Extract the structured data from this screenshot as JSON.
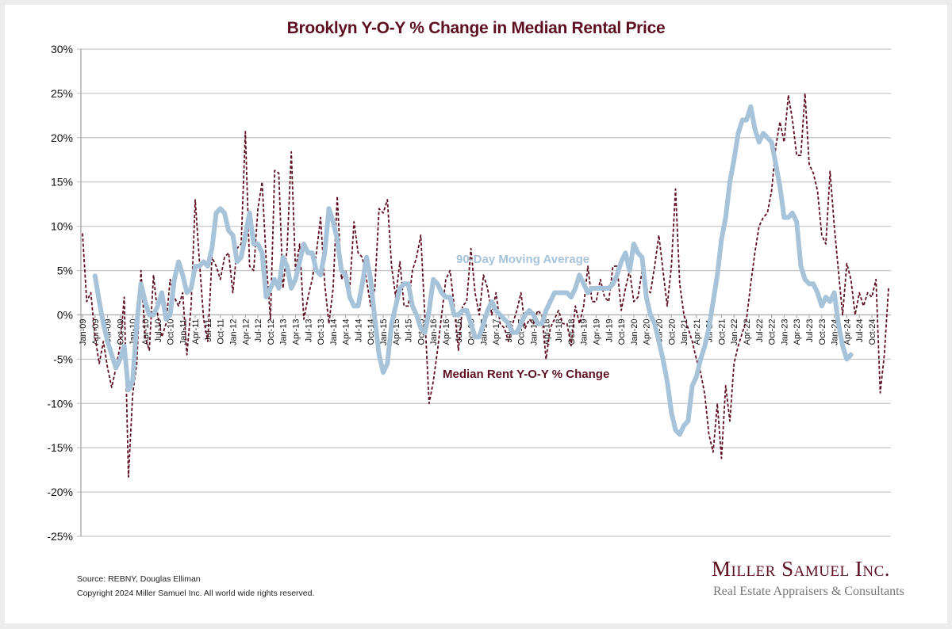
{
  "page": {
    "title": "Brooklyn Y-O-Y % Change in Median Rental Price",
    "source": "Source: REBNY, Douglas Elliman",
    "copyright": "Copyright 2024 Miller Samuel Inc.  All world wide rights reserved.",
    "logo": {
      "name": "Miller Samuel Inc.",
      "tagline": "Real Estate Appraisers & Consultants"
    },
    "colors": {
      "title": "#5e1020",
      "series_rent": "#5e1020",
      "series_avg": "#a7c3d9",
      "grid": "#c8c8c8",
      "axis": "#a0a0a0"
    }
  },
  "chart_data": {
    "type": "line",
    "title": "Brooklyn Y-O-Y % Change in Median Rental Price",
    "xlabel": "",
    "ylabel": "",
    "ylim": [
      -25,
      30
    ],
    "yticks": [
      -25,
      -20,
      -15,
      -10,
      -5,
      0,
      5,
      10,
      15,
      20,
      25,
      30
    ],
    "ytick_labels": [
      "-25%",
      "-20%",
      "-15%",
      "-10%",
      "-5%",
      "0%",
      "5%",
      "10%",
      "15%",
      "20%",
      "25%",
      "30%"
    ],
    "grid": true,
    "legend": "inline-annotations",
    "annotations": [
      {
        "text": "90-Day Moving Average",
        "series": "avg",
        "near": "Jan-17 / Oct-19, above line"
      },
      {
        "text": "Median Rent Y-O-Y % Change",
        "series": "rent",
        "near": "Jan-16 / Jan-20, below axis"
      }
    ],
    "x_start": "Jan-09",
    "x_frequency": "monthly",
    "xtick_labels": [
      "Jan-09",
      "Apr-09",
      "Jul-09",
      "Oct-09",
      "Jan-10",
      "Apr-10",
      "Jul-10",
      "Oct-10",
      "Jan-11",
      "Apr-11",
      "Jul-11",
      "Oct-11",
      "Jan-12",
      "Apr-12",
      "Jul-12",
      "Oct-12",
      "Jan-13",
      "Apr-13",
      "Jul-13",
      "Oct-13",
      "Jan-14",
      "Apr-14",
      "Jul-14",
      "Oct-14",
      "Jan-15",
      "Apr-15",
      "Jul-15",
      "Oct-15",
      "Jan-16",
      "Apr-16",
      "Jul-16",
      "Oct-16",
      "Jan-17",
      "Apr-17",
      "Jul-17",
      "Oct-17",
      "Jan-18",
      "Apr-18",
      "Jul-18",
      "Oct-18",
      "Jan-19",
      "Apr-19",
      "Jul-19",
      "Oct-19",
      "Jan-20",
      "Apr-20",
      "Jul-20",
      "Oct-20",
      "Jan-21",
      "Apr-21",
      "Jul-21",
      "Oct-21",
      "Jan-22",
      "Apr-22",
      "Jul-22",
      "Oct-22",
      "Jan-23",
      "Apr-23",
      "Jul-23",
      "Oct-23",
      "Jan-24",
      "Apr-24",
      "Jul-24",
      "Oct-24"
    ],
    "series": [
      {
        "name": "Median Rent Y-O-Y % Change",
        "key": "rent",
        "style": "dashed",
        "values": [
          9.2,
          1.5,
          2.5,
          -2.5,
          -5.5,
          -3.0,
          -6.0,
          -8.2,
          -6.0,
          -3.5,
          2.0,
          -18.3,
          -9.0,
          -5.5,
          5.0,
          -2.5,
          -4.0,
          4.5,
          0.0,
          -2.5,
          -1.0,
          4.0,
          2.0,
          1.0,
          2.5,
          -4.5,
          1.0,
          13.0,
          6.0,
          -0.5,
          -3.0,
          6.5,
          5.5,
          4.0,
          6.5,
          7.0,
          2.5,
          7.5,
          8.0,
          20.7,
          5.5,
          5.0,
          12.0,
          15.0,
          6.0,
          -0.5,
          16.3,
          16.0,
          3.0,
          7.5,
          18.4,
          5.0,
          8.0,
          -0.5,
          2.0,
          4.0,
          7.0,
          11.0,
          3.5,
          -1.0,
          3.0,
          13.4,
          4.0,
          5.0,
          3.0,
          10.5,
          7.0,
          6.5,
          4.0,
          1.0,
          3.0,
          12.0,
          11.5,
          13.0,
          5.5,
          2.0,
          6.0,
          1.0,
          1.0,
          5.0,
          6.5,
          9.0,
          -0.5,
          -10.0,
          -7.5,
          -4.0,
          0.0,
          4.0,
          5.0,
          1.0,
          -4.0,
          1.0,
          1.5,
          7.5,
          2.5,
          0.0,
          4.5,
          3.0,
          0.0,
          2.5,
          -1.0,
          -1.5,
          -3.0,
          -1.0,
          0.5,
          2.5,
          -1.5,
          -0.5,
          -1.0,
          0.5,
          0.0,
          -5.0,
          -1.5,
          -0.5,
          0.5,
          -1.0,
          -1.0,
          -3.5,
          1.0,
          -1.0,
          1.0,
          5.5,
          1.5,
          1.5,
          4.0,
          2.0,
          1.5,
          5.5,
          5.5,
          0.5,
          3.0,
          5.0,
          1.5,
          2.0,
          5.0,
          3.0,
          2.5,
          5.5,
          9.0,
          5.0,
          1.0,
          5.5,
          14.2,
          3.5,
          0.0,
          -1.5,
          -3.0,
          -5.0,
          -6.5,
          -9.0,
          -13.5,
          -15.5,
          -10.0,
          -16.2,
          -8.0,
          -12.0,
          -5.5,
          -3.5,
          -2.0,
          -0.5,
          3.5,
          7.0,
          10.0,
          11.0,
          11.5,
          14.0,
          19.0,
          21.8,
          19.5,
          24.8,
          22.0,
          18.0,
          18.0,
          25.0,
          17.0,
          16.0,
          14.0,
          9.0,
          8.0,
          16.2,
          10.0,
          5.0,
          0.0,
          5.8,
          4.0,
          0.0,
          2.5,
          1.0,
          2.5,
          2.0,
          4.0,
          -8.8,
          -4.5,
          3.0
        ]
      },
      {
        "name": "90-Day Moving Average",
        "key": "avg",
        "style": "solid-thick",
        "values": [
          null,
          null,
          null,
          4.4,
          1.5,
          -1.0,
          -3.0,
          -4.5,
          -6.0,
          -5.0,
          -3.5,
          -8.5,
          -7.5,
          -1.0,
          3.5,
          1.5,
          0.0,
          0.0,
          1.0,
          2.5,
          -0.5,
          0.0,
          4.0,
          6.0,
          4.5,
          2.5,
          3.0,
          5.5,
          5.5,
          6.0,
          5.5,
          7.5,
          11.5,
          12.0,
          11.5,
          9.5,
          9.0,
          6.0,
          6.5,
          9.0,
          11.5,
          8.0,
          8.0,
          7.0,
          2.0,
          3.0,
          4.0,
          3.0,
          6.5,
          5.5,
          3.0,
          4.0,
          6.0,
          8.0,
          7.0,
          7.0,
          5.0,
          4.5,
          7.0,
          12.0,
          10.5,
          8.5,
          5.0,
          4.5,
          2.0,
          1.0,
          1.0,
          3.5,
          6.5,
          4.0,
          -0.5,
          -4.5,
          -6.5,
          -5.5,
          -1.0,
          1.0,
          3.0,
          3.5,
          3.5,
          1.0,
          0.0,
          -1.5,
          -2.0,
          0.5,
          4.0,
          3.5,
          2.5,
          2.0,
          2.0,
          0.0,
          0.0,
          0.5,
          0.5,
          -1.0,
          -2.5,
          -2.5,
          -1.0,
          0.5,
          1.5,
          0.5,
          0.0,
          -0.5,
          -1.0,
          -2.0,
          -2.0,
          -1.0,
          0.0,
          0.5,
          0.0,
          -1.0,
          -1.0,
          0.5,
          1.5,
          2.5,
          2.5,
          2.5,
          2.5,
          2.0,
          3.0,
          4.5,
          3.5,
          2.5,
          3.0,
          3.0,
          3.0,
          3.0,
          3.0,
          3.5,
          4.5,
          6.0,
          7.0,
          5.0,
          8.0,
          7.0,
          6.5,
          2.0,
          0.0,
          -1.0,
          -3.0,
          -5.0,
          -7.5,
          -11.0,
          -13.0,
          -13.5,
          -12.5,
          -12.0,
          -8.0,
          -7.0,
          -5.0,
          -3.5,
          -1.5,
          1.5,
          4.5,
          8.5,
          11.0,
          15.0,
          17.5,
          20.5,
          22.0,
          22.0,
          23.5,
          21.0,
          19.5,
          20.5,
          20.0,
          19.5,
          17.0,
          14.5,
          11.0,
          11.0,
          11.5,
          10.5,
          5.5,
          4.0,
          3.5,
          3.5,
          2.5,
          1.0,
          2.0,
          1.5,
          2.5,
          -1.0,
          -3.5,
          -5.0,
          -4.5
        ]
      }
    ]
  }
}
